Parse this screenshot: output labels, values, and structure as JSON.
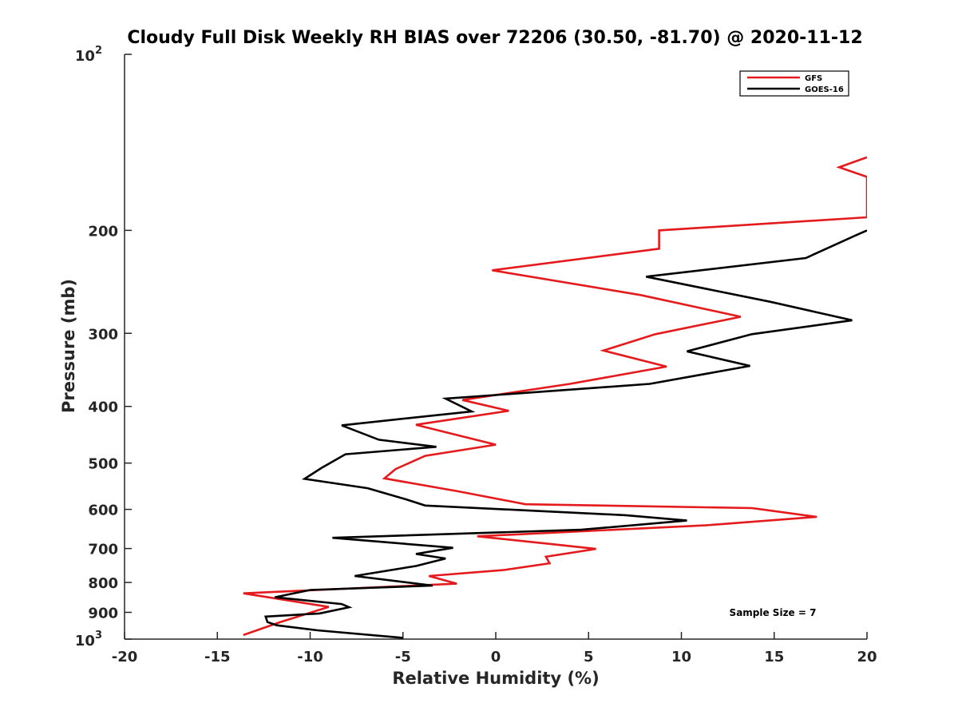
{
  "chart_data": {
    "type": "line",
    "title": "Cloudy Full Disk Weekly RH BIAS over 72206 (30.50, -81.70) @ 2020-11-12",
    "xlabel": "Relative Humidity (%)",
    "ylabel": "Pressure (mb)",
    "xlim": [
      -20,
      20
    ],
    "ylim": [
      100,
      1000
    ],
    "yscale": "log",
    "y_reversed": true,
    "xticks": [
      -20,
      -15,
      -10,
      -5,
      0,
      5,
      10,
      15,
      20
    ],
    "xtick_labels": [
      "-20",
      "-15",
      "-10",
      "-5",
      "0",
      "5",
      "10",
      "15",
      "20"
    ],
    "yticks": [
      200,
      300,
      400,
      500,
      600,
      700,
      800,
      900
    ],
    "ytick_labels": [
      "200",
      "300",
      "400",
      "500",
      "600",
      "700",
      "800",
      "900"
    ],
    "y_top_label": {
      "base": "10",
      "exp": "2"
    },
    "y_bottom_label": {
      "base": "10",
      "exp": "3"
    },
    "legend_position": "top-right",
    "annotation": "Sample Size = 7",
    "series": [
      {
        "name": "GFS",
        "color": "#e41a1c",
        "points": [
          [
            20,
            150
          ],
          [
            18.5,
            156
          ],
          [
            20,
            162
          ],
          [
            20,
            190
          ],
          [
            8.8,
            200
          ],
          [
            8.8,
            215
          ],
          [
            -0.2,
            234
          ],
          [
            7.8,
            258
          ],
          [
            13.2,
            281
          ],
          [
            8.6,
            301
          ],
          [
            5.8,
            321
          ],
          [
            9.2,
            342
          ],
          [
            4.0,
            366
          ],
          [
            -1.8,
            390
          ],
          [
            0.7,
            407
          ],
          [
            -4.3,
            430
          ],
          [
            0,
            465
          ],
          [
            -3.8,
            486
          ],
          [
            -5.4,
            512
          ],
          [
            -6.0,
            531
          ],
          [
            -2.0,
            559
          ],
          [
            1.6,
            588
          ],
          [
            13.8,
            597
          ],
          [
            17.3,
            618
          ],
          [
            11.3,
            639
          ],
          [
            -1.0,
            667
          ],
          [
            3.0,
            688
          ],
          [
            5.4,
            701
          ],
          [
            2.7,
            723
          ],
          [
            2.9,
            742
          ],
          [
            0.4,
            762
          ],
          [
            -3.6,
            780
          ],
          [
            -2.1,
            804
          ],
          [
            -13.6,
            835
          ],
          [
            -9.0,
            881
          ],
          [
            -11.6,
            935
          ],
          [
            -13.6,
            984
          ]
        ]
      },
      {
        "name": "GOES-16",
        "color": "#000000",
        "points": [
          [
            20,
            200
          ],
          [
            19.4,
            204
          ],
          [
            16.7,
            223
          ],
          [
            8.1,
            240
          ],
          [
            14.8,
            265
          ],
          [
            19.2,
            285
          ],
          [
            13.8,
            301
          ],
          [
            10.3,
            322
          ],
          [
            13.7,
            341
          ],
          [
            8.3,
            366
          ],
          [
            -2.7,
            388
          ],
          [
            -1.3,
            408
          ],
          [
            -8.3,
            431
          ],
          [
            -6.3,
            456
          ],
          [
            -3.2,
            469
          ],
          [
            -8.1,
            483
          ],
          [
            -9.4,
            510
          ],
          [
            -10.3,
            532
          ],
          [
            -6.9,
            552
          ],
          [
            -4.9,
            576
          ],
          [
            -3.8,
            591
          ],
          [
            7.0,
            614
          ],
          [
            10.3,
            627
          ],
          [
            4.6,
            650
          ],
          [
            -8.8,
            671
          ],
          [
            -2.3,
            698
          ],
          [
            -4.3,
            715
          ],
          [
            -2.7,
            728
          ],
          [
            -4.3,
            750
          ],
          [
            -7.6,
            780
          ],
          [
            -3.4,
            810
          ],
          [
            -10.0,
            824
          ],
          [
            -11.9,
            848
          ],
          [
            -8.3,
            871
          ],
          [
            -7.9,
            882
          ],
          [
            -9.5,
            904
          ],
          [
            -12.4,
            915
          ],
          [
            -12.3,
            935
          ],
          [
            -11.8,
            947
          ],
          [
            -9.6,
            966
          ],
          [
            -5.0,
            995
          ]
        ]
      }
    ]
  }
}
